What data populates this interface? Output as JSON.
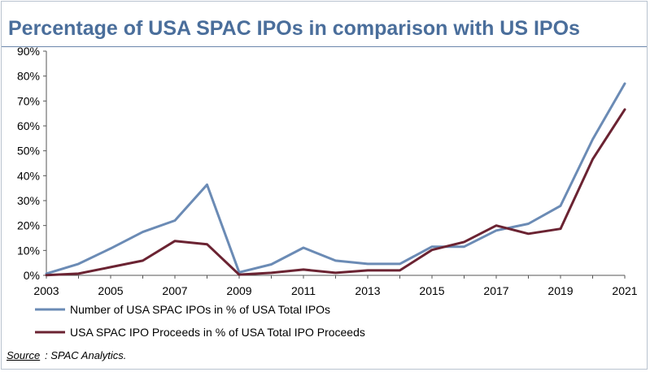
{
  "title": "Percentage of USA SPAC IPOs in comparison with US IPOs",
  "source": {
    "label": "Source",
    "text": ": SPAC Analytics."
  },
  "colors": {
    "title": "#4a6e9b",
    "series_count": "#6b8bb5",
    "series_proceeds": "#6b2332",
    "axis": "#555555"
  },
  "chart_data": {
    "type": "line",
    "title": "Percentage of USA SPAC IPOs in comparison with US IPOs",
    "xlabel": "",
    "ylabel": "",
    "x": [
      2003,
      2004,
      2005,
      2006,
      2007,
      2008,
      2009,
      2010,
      2011,
      2012,
      2013,
      2014,
      2015,
      2016,
      2017,
      2018,
      2019,
      2020,
      2021
    ],
    "x_tick_labels": [
      "2003",
      "2005",
      "2007",
      "2009",
      "2011",
      "2013",
      "2015",
      "2017",
      "2019",
      "2021"
    ],
    "ylim": [
      0,
      90
    ],
    "y_ticks": [
      0,
      10,
      20,
      30,
      40,
      50,
      60,
      70,
      80,
      90
    ],
    "y_tick_labels": [
      "0%",
      "10%",
      "20%",
      "30%",
      "40%",
      "50%",
      "60%",
      "70%",
      "80%",
      "90%"
    ],
    "grid": false,
    "legend_position": "bottom",
    "series": [
      {
        "name": "Number of USA SPAC IPOs in % of USA Total IPOs",
        "color": "#6b8bb5",
        "values": [
          0.7,
          4.6,
          10.8,
          17.4,
          22.0,
          36.4,
          1.2,
          4.4,
          11.1,
          5.9,
          4.6,
          4.6,
          11.5,
          11.5,
          18.0,
          20.7,
          27.9,
          54.6,
          77.0
        ]
      },
      {
        "name": "USA SPAC IPO Proceeds in % of USA Total IPO Proceeds",
        "color": "#6b2332",
        "values": [
          0.1,
          0.7,
          3.3,
          5.9,
          13.8,
          12.5,
          0.3,
          1.0,
          2.3,
          1.0,
          2.0,
          2.0,
          10.2,
          13.4,
          20.0,
          16.7,
          18.7,
          46.6,
          66.6
        ]
      }
    ]
  }
}
